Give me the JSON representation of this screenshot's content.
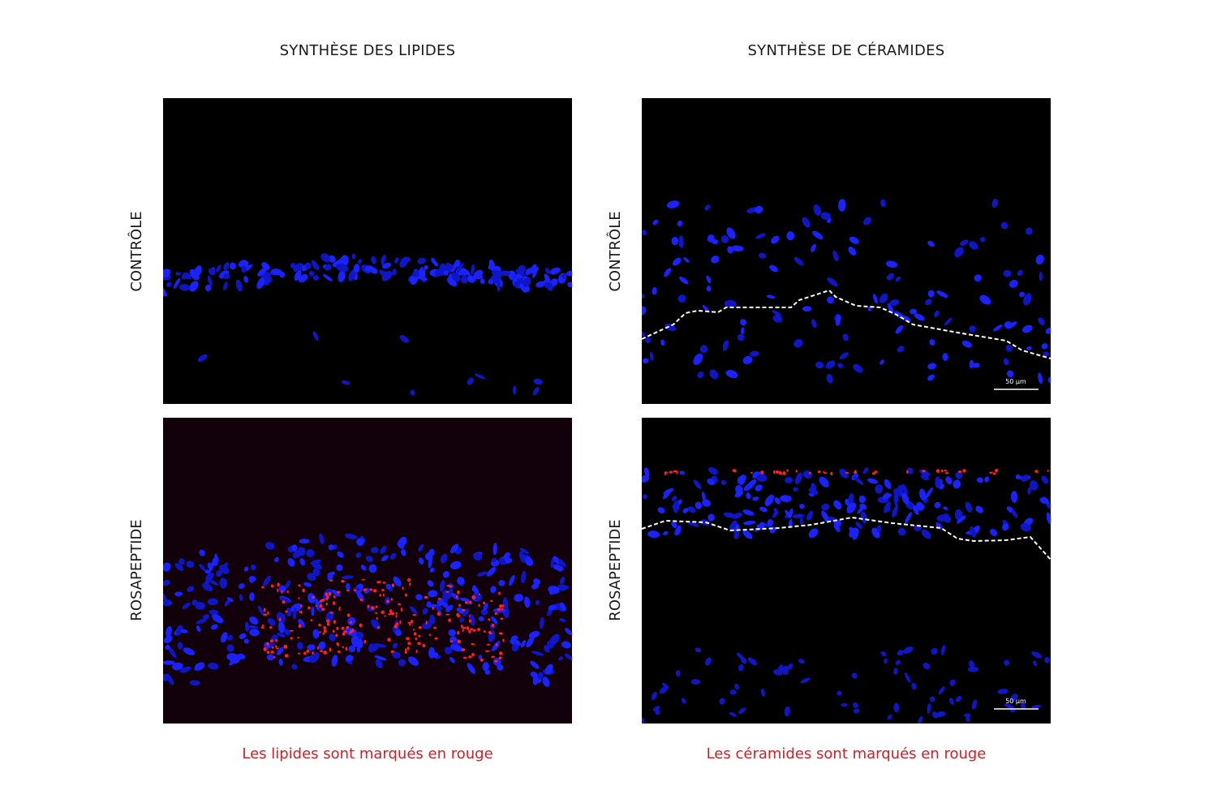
{
  "columns": [
    {
      "title": "SYNTHÈSE DES LIPIDES",
      "caption": "Les lipides sont marqués en rouge"
    },
    {
      "title": "SYNTHÈSE DE CÉRAMIDES",
      "caption": "Les céramides sont marqués en rouge"
    }
  ],
  "rows": [
    "CONTRÔLE",
    "ROSAPEPTIDE"
  ],
  "scale_bars": [
    "50 µm",
    "50 µm"
  ]
}
